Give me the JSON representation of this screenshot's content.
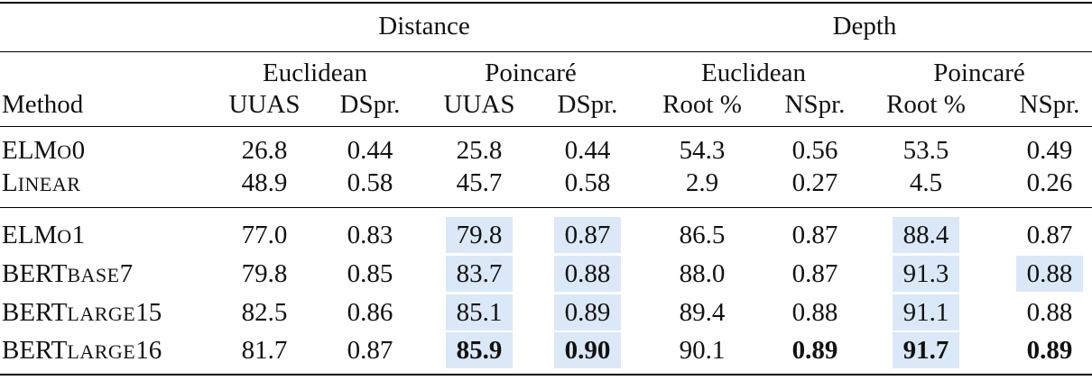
{
  "groups": [
    "Distance",
    "Depth"
  ],
  "subgroups": [
    "Euclidean",
    "Poincaré",
    "Euclidean",
    "Poincaré"
  ],
  "method_header": "Method",
  "columns": [
    "UUAS",
    "DSpr.",
    "UUAS",
    "DSpr.",
    "Root %",
    "NSpr.",
    "Root %",
    "NSpr."
  ],
  "rows": [
    {
      "method_cap": "ELM",
      "method_small": "O",
      "method_rest": "0",
      "cells": [
        "26.8",
        "0.44",
        "25.8",
        "0.44",
        "54.3",
        "0.56",
        "53.5",
        "0.49"
      ]
    },
    {
      "method_cap": "L",
      "method_small": "INEAR",
      "method_rest": "",
      "cells": [
        "48.9",
        "0.58",
        "45.7",
        "0.58",
        "2.9",
        "0.27",
        "4.5",
        "0.26"
      ]
    },
    {
      "method_cap": "ELM",
      "method_small": "O",
      "method_rest": "1",
      "cells": [
        "77.0",
        "0.83",
        "79.8",
        "0.87",
        "86.5",
        "0.87",
        "88.4",
        "0.87"
      ]
    },
    {
      "method_cap": "BERT",
      "method_small": "BASE",
      "method_rest": "7",
      "cells": [
        "79.8",
        "0.85",
        "83.7",
        "0.88",
        "88.0",
        "0.87",
        "91.3",
        "0.88"
      ]
    },
    {
      "method_cap": "BERT",
      "method_small": "LARGE",
      "method_rest": "15",
      "cells": [
        "82.5",
        "0.86",
        "85.1",
        "0.89",
        "89.4",
        "0.88",
        "91.1",
        "0.88"
      ]
    },
    {
      "method_cap": "BERT",
      "method_small": "LARGE",
      "method_rest": "16",
      "cells": [
        "81.7",
        "0.87",
        "85.9",
        "0.90",
        "90.1",
        "0.89",
        "91.7",
        "0.89"
      ]
    }
  ],
  "highlight_color": "#dbe8f7",
  "highlighted_cells": [
    [
      2,
      2
    ],
    [
      2,
      3
    ],
    [
      2,
      6
    ],
    [
      3,
      2
    ],
    [
      3,
      3
    ],
    [
      3,
      6
    ],
    [
      3,
      7
    ],
    [
      4,
      2
    ],
    [
      4,
      3
    ],
    [
      4,
      6
    ],
    [
      5,
      2
    ],
    [
      5,
      3
    ],
    [
      5,
      6
    ]
  ],
  "bold_cells": [
    [
      5,
      2
    ],
    [
      5,
      3
    ],
    [
      5,
      5
    ],
    [
      5,
      6
    ],
    [
      5,
      7
    ]
  ]
}
